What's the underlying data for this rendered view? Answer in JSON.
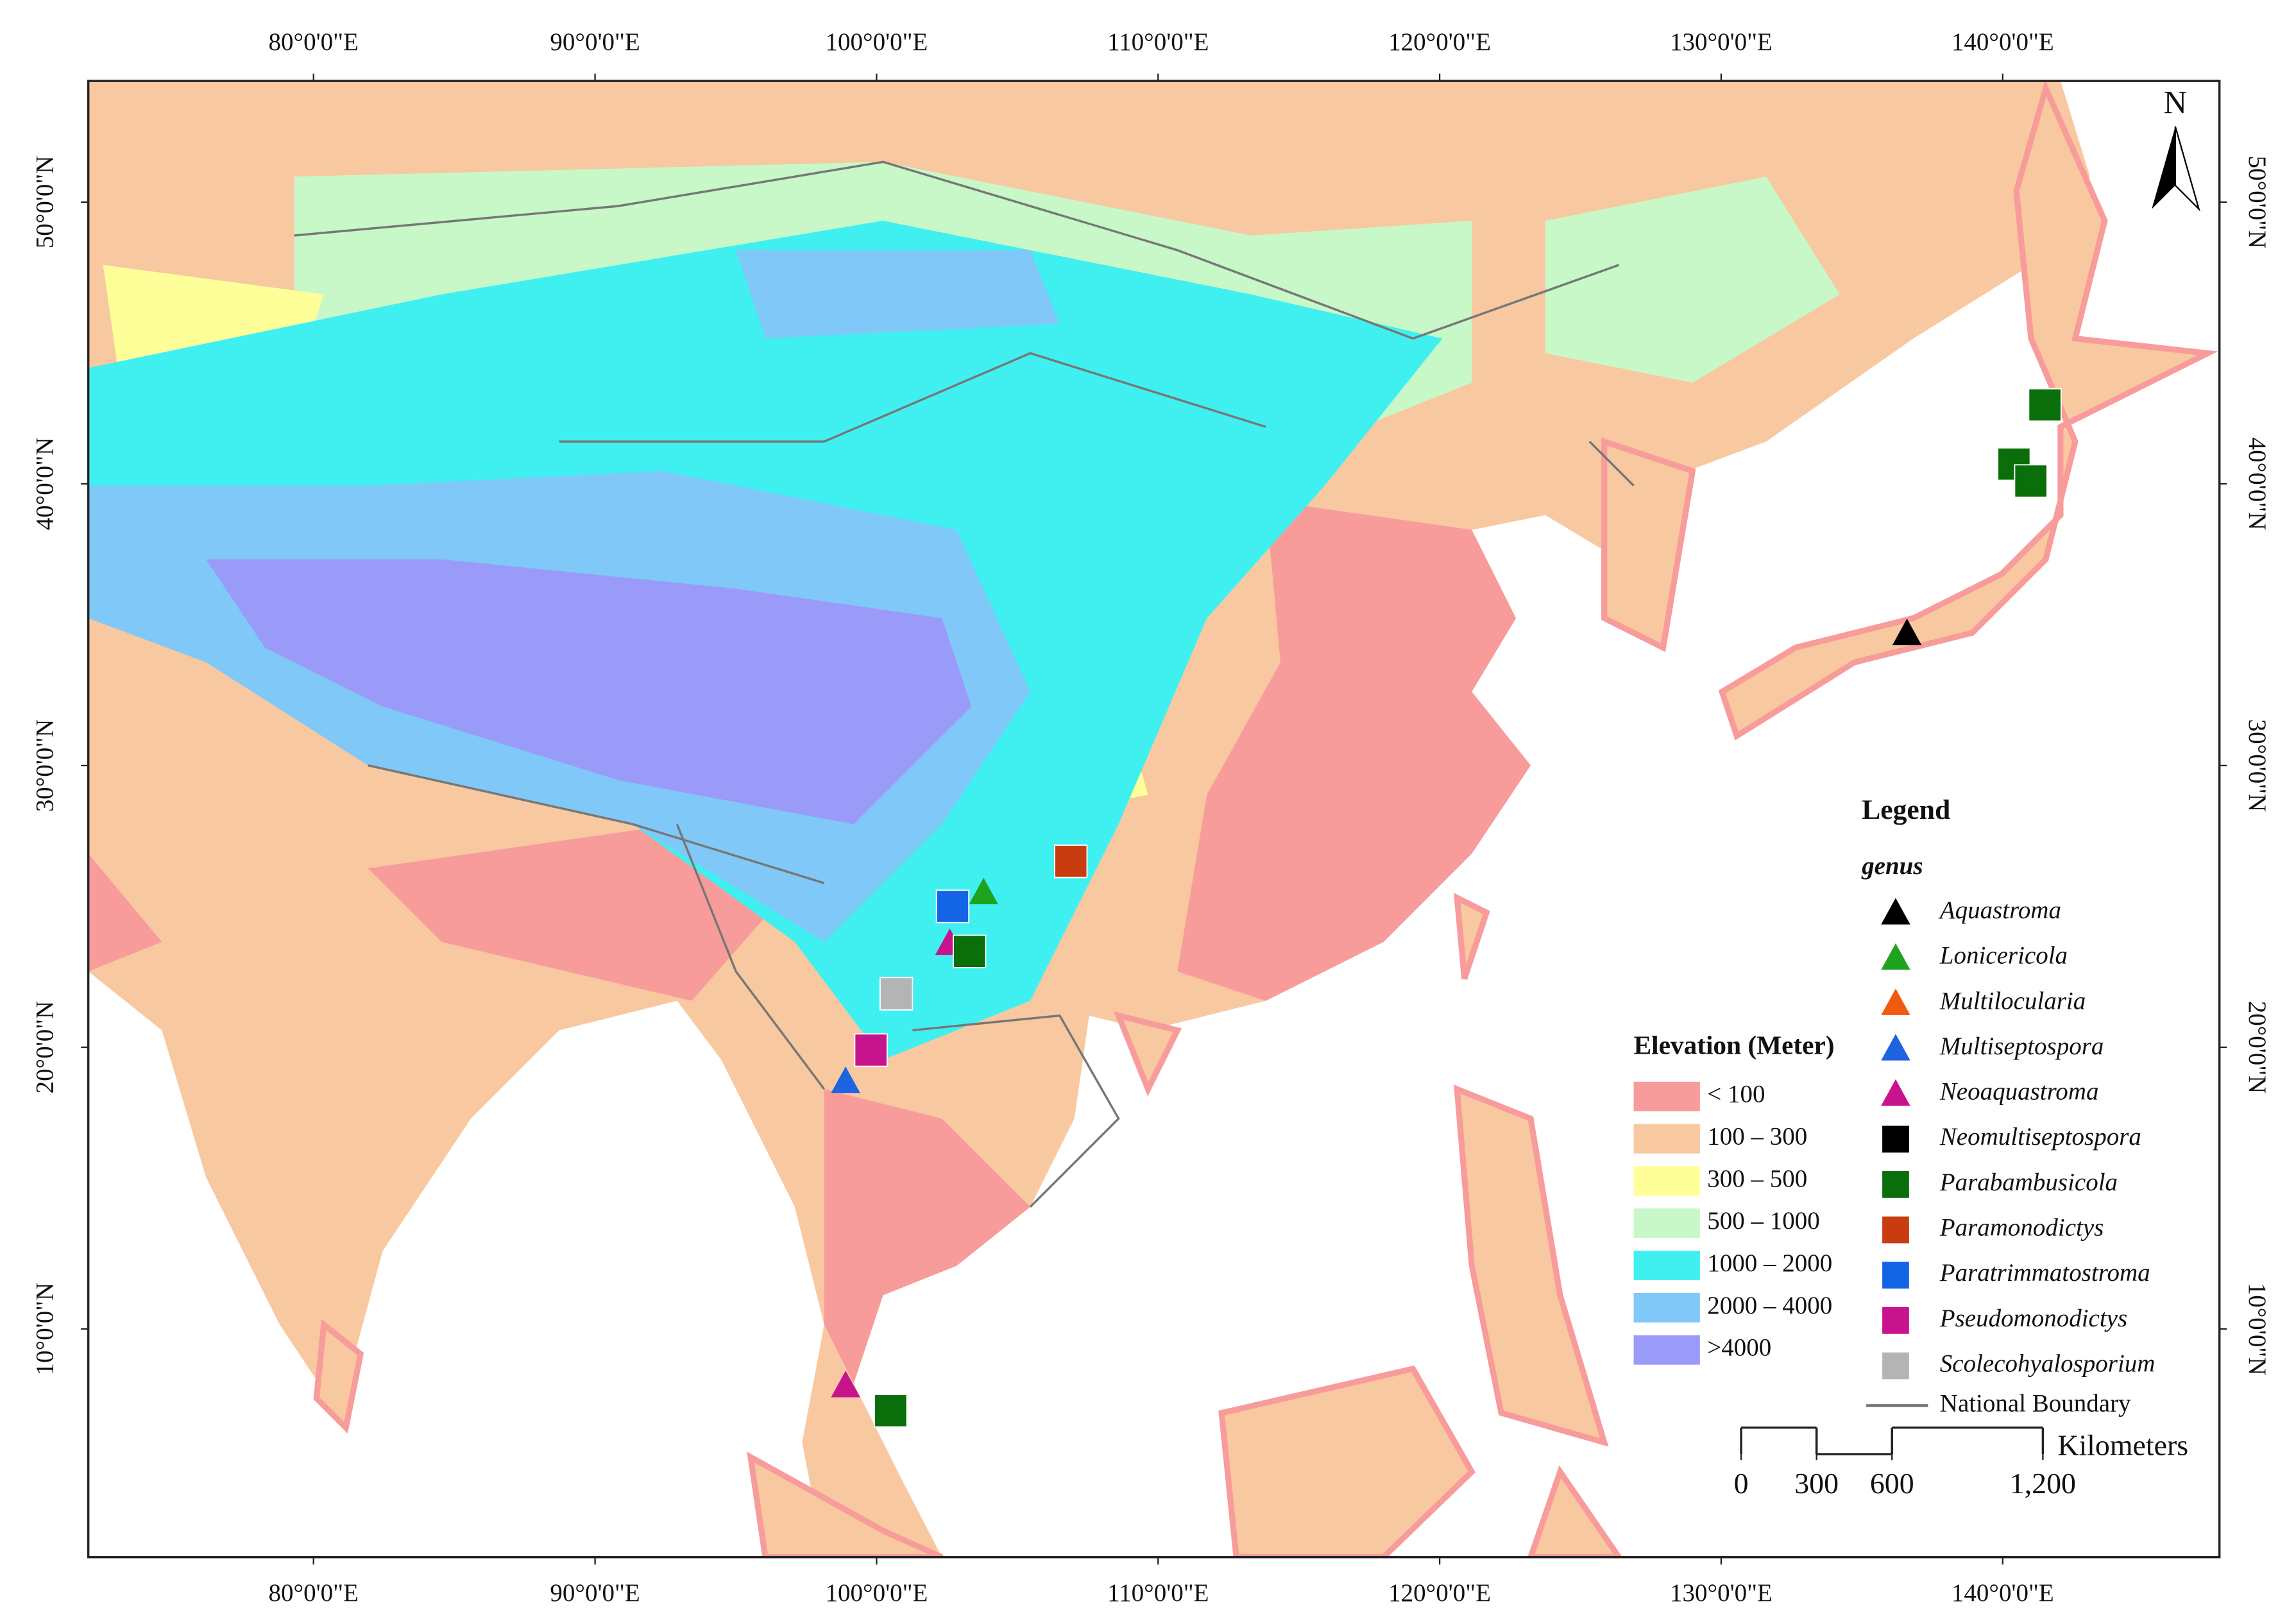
{
  "map": {
    "xlim": [
      72,
      147.7
    ],
    "ylim": [
      1.9,
      54.3
    ],
    "xticks": [
      {
        "value": 80,
        "label": "80°0'0\"E"
      },
      {
        "value": 90,
        "label": "90°0'0\"E"
      },
      {
        "value": 100,
        "label": "100°0'0\"E"
      },
      {
        "value": 110,
        "label": "110°0'0\"E"
      },
      {
        "value": 120,
        "label": "120°0'0\"E"
      },
      {
        "value": 130,
        "label": "130°0'0\"E"
      },
      {
        "value": 140,
        "label": "140°0'0\"E"
      }
    ],
    "yticks": [
      {
        "value": 10,
        "label": "10°0'0\"N"
      },
      {
        "value": 20,
        "label": "20°0'0\"N"
      },
      {
        "value": 30,
        "label": "30°0'0\"N"
      },
      {
        "value": 40,
        "label": "40°0'0\"N"
      },
      {
        "value": 50,
        "label": "50°0'0\"N"
      }
    ],
    "north": "N",
    "legend": {
      "title": "Legend",
      "subtitle": "genus",
      "items": [
        {
          "name": "Aquastroma",
          "shape": "triangle",
          "color": "#000000"
        },
        {
          "name": "Lonicericola",
          "shape": "triangle",
          "color": "#1fa31f"
        },
        {
          "name": "Multilocularia",
          "shape": "triangle",
          "color": "#f05a10"
        },
        {
          "name": "Multiseptospora",
          "shape": "triangle",
          "color": "#1e64e0"
        },
        {
          "name": "Neoaquastroma",
          "shape": "triangle",
          "color": "#c8148c"
        },
        {
          "name": "Neomultiseptospora",
          "shape": "square",
          "color": "#000000"
        },
        {
          "name": "Parabambusicola",
          "shape": "square",
          "color": "#0a6e0a"
        },
        {
          "name": "Paramonodictys",
          "shape": "square",
          "color": "#c83c10"
        },
        {
          "name": "Paratrimmatostroma",
          "shape": "square",
          "color": "#1464e6"
        },
        {
          "name": "Pseudomonodictys",
          "shape": "square",
          "color": "#c8148c"
        },
        {
          "name": "Scolecohyalosporium",
          "shape": "square",
          "color": "#b4b4b4"
        }
      ],
      "boundary": "National Boundary"
    },
    "elevation": {
      "title": "Elevation (Meter)",
      "classes": [
        {
          "label": "< 100",
          "color": "#f89b9b"
        },
        {
          "label": "100 – 300",
          "color": "#f8c8a0"
        },
        {
          "label": "300 – 500",
          "color": "#ffff9a"
        },
        {
          "label": "500 – 1000",
          "color": "#c8f8c8"
        },
        {
          "label": "1000 – 2000",
          "color": "#40f0f0"
        },
        {
          "label": "2000 – 4000",
          "color": "#80c8f8"
        },
        {
          "label": ">4000",
          "color": "#9a9af8"
        }
      ]
    },
    "scale": {
      "unit": "Kilometers",
      "ticks": [
        0,
        300,
        600,
        {
          "value": 1200,
          "label": "1,200"
        }
      ]
    },
    "points": [
      {
        "genus": "Aquastroma",
        "lon": 136.6,
        "lat": 34.7
      },
      {
        "genus": "Lonicericola",
        "lon": 103.8,
        "lat": 25.5
      },
      {
        "genus": "Neoaquastroma",
        "lon": 102.6,
        "lat": 23.7
      },
      {
        "genus": "Neoaquastroma",
        "lon": 98.9,
        "lat": 8.0
      },
      {
        "genus": "Multiseptospora",
        "lon": 98.9,
        "lat": 18.8
      },
      {
        "genus": "Parabambusicola",
        "lon": 141.5,
        "lat": 42.8
      },
      {
        "genus": "Parabambusicola",
        "lon": 140.4,
        "lat": 40.7
      },
      {
        "genus": "Parabambusicola",
        "lon": 141.0,
        "lat": 40.1
      },
      {
        "genus": "Parabambusicola",
        "lon": 103.3,
        "lat": 23.4
      },
      {
        "genus": "Parabambusicola",
        "lon": 100.5,
        "lat": 7.1
      },
      {
        "genus": "Paramonodictys",
        "lon": 106.9,
        "lat": 26.6
      },
      {
        "genus": "Paratrimmatostroma",
        "lon": 102.7,
        "lat": 25.0
      },
      {
        "genus": "Pseudomonodictys",
        "lon": 99.8,
        "lat": 19.9
      },
      {
        "genus": "Scolecohyalosporium",
        "lon": 100.7,
        "lat": 21.9
      }
    ]
  }
}
